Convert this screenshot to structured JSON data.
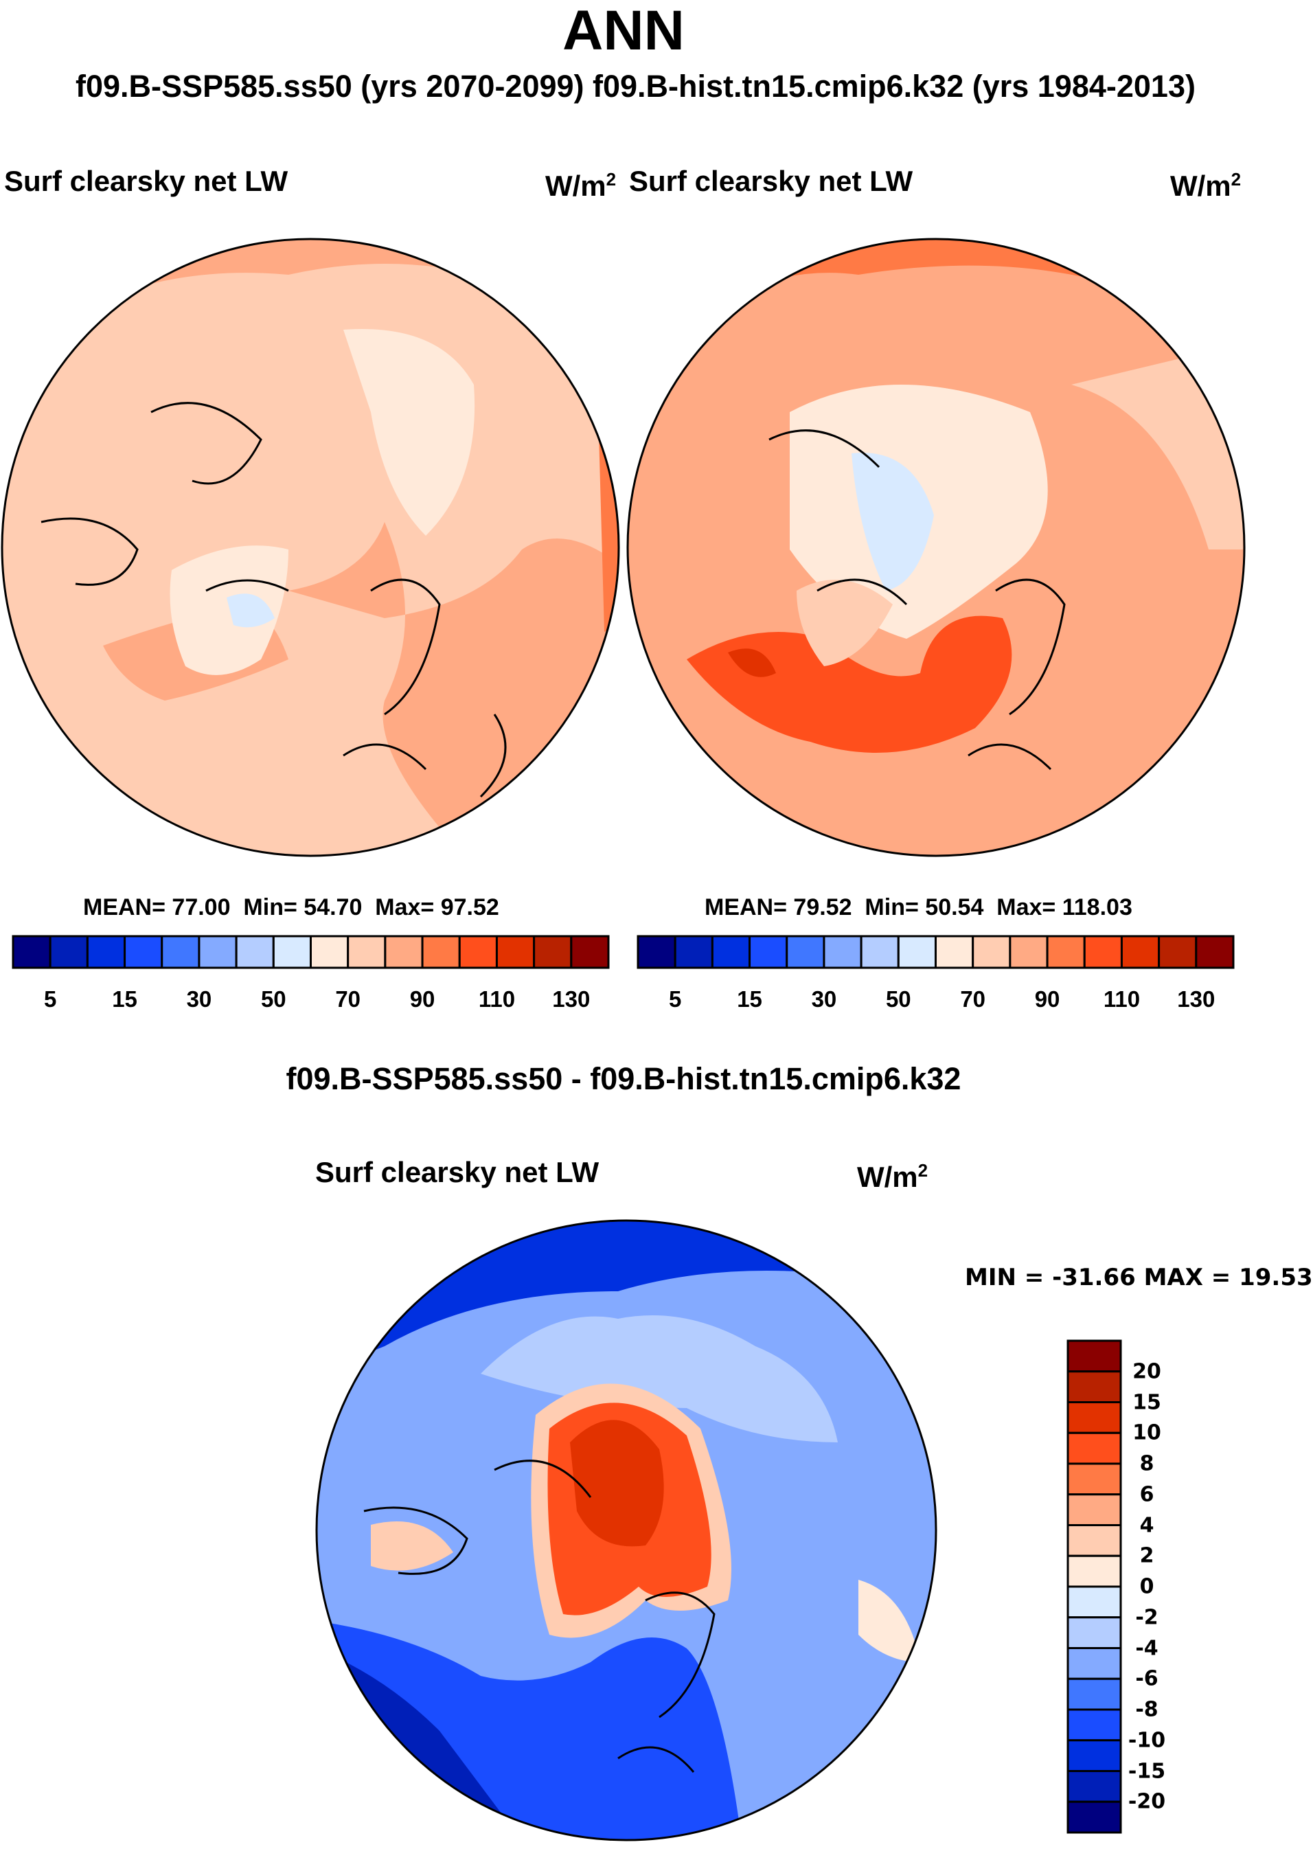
{
  "title": "ANN",
  "subtitle": "f09.B-SSP585.ss50 (yrs 2070-2099)  f09.B-hist.tn15.cmip6.k32 (yrs 1984-2013)",
  "diff_title": "f09.B-SSP585.ss50 - f09.B-hist.tn15.cmip6.k32",
  "chart_data": [
    {
      "type": "heatmap",
      "projection": "north polar stereographic",
      "title": "Surf clearsky net LW",
      "units_base": "W/m",
      "units_exp": "2",
      "stats": {
        "mean_label": "MEAN=",
        "mean": "77.00",
        "min_label": "Min=",
        "min": "54.70",
        "max_label": "Max=",
        "max": "97.52"
      },
      "colorbar": {
        "orientation": "horizontal",
        "tick_labels": [
          "5",
          "15",
          "30",
          "50",
          "70",
          "90",
          "110",
          "130"
        ]
      }
    },
    {
      "type": "heatmap",
      "projection": "north polar stereographic",
      "title": "Surf clearsky net LW",
      "units_base": "W/m",
      "units_exp": "2",
      "stats": {
        "mean_label": "MEAN=",
        "mean": "79.52",
        "min_label": "Min=",
        "min": "50.54",
        "max_label": "Max=",
        "max": "118.03"
      },
      "colorbar": {
        "orientation": "horizontal",
        "tick_labels": [
          "5",
          "15",
          "30",
          "50",
          "70",
          "90",
          "110",
          "130"
        ]
      }
    },
    {
      "type": "heatmap",
      "projection": "north polar stereographic",
      "title": "Surf clearsky net LW",
      "units_base": "W/m",
      "units_exp": "2",
      "minmax": "MIN = -31.66 MAX =  19.53",
      "colorbar": {
        "orientation": "vertical",
        "tick_labels": [
          "20",
          "15",
          "10",
          "8",
          "6",
          "4",
          "2",
          "0",
          "-2",
          "-4",
          "-6",
          "-8",
          "-10",
          "-15",
          "-20"
        ]
      }
    }
  ],
  "colors": [
    "#000080",
    "#001fb8",
    "#0030e0",
    "#1a4dff",
    "#4077ff",
    "#84aaff",
    "#b4cdff",
    "#d8eaff",
    "#ffeada",
    "#ffcdb2",
    "#ffaa84",
    "#ff7a45",
    "#ff4f1c",
    "#e23200",
    "#b82200",
    "#8a0000"
  ]
}
